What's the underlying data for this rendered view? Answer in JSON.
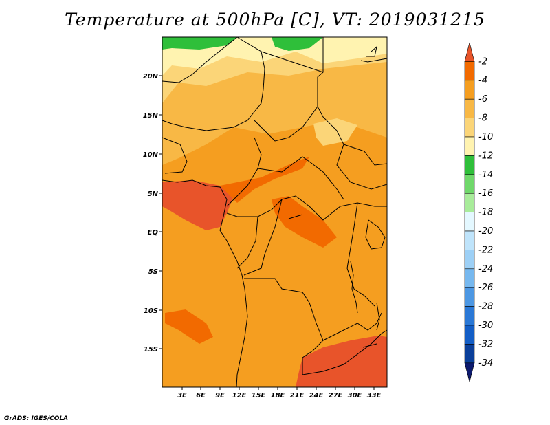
{
  "title": "Temperature at 500hPa [C], VT: 2019031215",
  "credit": "GrADS: IGES/COLA",
  "lat_labels": [
    "20N",
    "15N",
    "10N",
    "5N",
    "EQ",
    "5S",
    "10S",
    "15S"
  ],
  "lon_labels": [
    "3E",
    "6E",
    "9E",
    "12E",
    "15E",
    "18E",
    "21E",
    "24E",
    "27E",
    "30E",
    "33E"
  ],
  "colorbar": {
    "labels": [
      "-2",
      "-4",
      "-6",
      "-8",
      "-10",
      "-12",
      "-14",
      "-16",
      "-18",
      "-20",
      "-22",
      "-24",
      "-26",
      "-28",
      "-30",
      "-32",
      "-34"
    ],
    "colors": [
      "#e8542a",
      "#f26a00",
      "#f59e20",
      "#f8b845",
      "#fbd578",
      "#fff3b0",
      "#2fbf3a",
      "#6fd86a",
      "#a8ec9a",
      "#e4f8ff",
      "#bfe4fb",
      "#9dd0f6",
      "#76b8ef",
      "#4c97e3",
      "#2a78d6",
      "#135ec6",
      "#0a3f9a",
      "#0d1a6e"
    ]
  },
  "colors": {
    "warm": "#e8542a",
    "mid": "#f59e20",
    "base": "#f8b845",
    "light": "#fbd578",
    "pale": "#fff3b0",
    "green": "#2fbf3a"
  }
}
